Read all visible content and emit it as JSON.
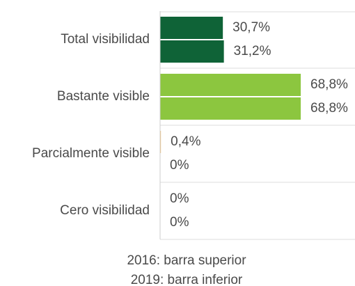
{
  "chart_data": {
    "type": "bar",
    "orientation": "horizontal",
    "categories": [
      "Total visibilidad",
      "Bastante visible",
      "Parcialmente visible",
      "Cero visibilidad"
    ],
    "category_colors": [
      "#0f6337",
      "#8cc63f",
      "#f2c27a",
      "#cccccc"
    ],
    "series": [
      {
        "name": "2016: barra superior",
        "values": [
          30.7,
          68.8,
          0.4,
          0
        ],
        "value_labels": [
          "30,7%",
          "68,8%",
          "0,4%",
          "0%"
        ]
      },
      {
        "name": "2019: barra inferior",
        "values": [
          31.2,
          68.8,
          0,
          0
        ],
        "value_labels": [
          "31,2%",
          "68,8%",
          "0%",
          "0%"
        ]
      }
    ],
    "xlim": [
      0,
      95
    ]
  }
}
